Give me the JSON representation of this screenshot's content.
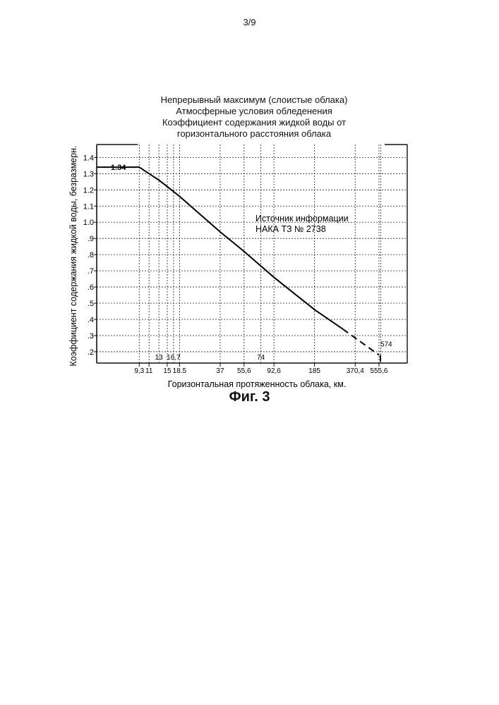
{
  "page_number": "3/9",
  "figure_label": "Фиг. 3",
  "chart_data": {
    "type": "line",
    "title_lines": [
      "Непрерывный максимум (слоистые облака)",
      "Атмосферные условия обледенения",
      "Коэффициент содержания жидкой воды от",
      "горизонтального расстояния облака"
    ],
    "xlabel": "Горизонтальная протяженность облака, км.",
    "ylabel": "Коэффициент содержания жидкой воды, безразмерн.",
    "x_scale": "log",
    "xlim": [
      4.5,
      900
    ],
    "ylim": [
      0.13,
      1.48
    ],
    "grid": true,
    "y_ticks": [
      {
        "value": 1.4,
        "label": "1.4"
      },
      {
        "value": 1.3,
        "label": "1.3"
      },
      {
        "value": 1.2,
        "label": "1.2"
      },
      {
        "value": 1.1,
        "label": "1.1"
      },
      {
        "value": 1.0,
        "label": "1.0"
      },
      {
        "value": 0.9,
        "label": ".9"
      },
      {
        "value": 0.8,
        "label": ".8"
      },
      {
        "value": 0.7,
        "label": ".7"
      },
      {
        "value": 0.6,
        "label": ".6"
      },
      {
        "value": 0.5,
        "label": ".5"
      },
      {
        "value": 0.4,
        "label": ".4"
      },
      {
        "value": 0.3,
        "label": ".3"
      },
      {
        "value": 0.2,
        "label": ".2"
      }
    ],
    "x_ticks_bottom": [
      {
        "value": 9.3,
        "label": "9,3"
      },
      {
        "value": 11,
        "label": "11"
      },
      {
        "value": 15,
        "label": "15"
      },
      {
        "value": 18.5,
        "label": "18.5"
      },
      {
        "value": 37,
        "label": "37"
      },
      {
        "value": 55.6,
        "label": "55,6"
      },
      {
        "value": 92.6,
        "label": "92,6"
      },
      {
        "value": 185,
        "label": "185"
      },
      {
        "value": 370.4,
        "label": "370,4"
      },
      {
        "value": 555.6,
        "label": "555,6"
      }
    ],
    "x_ticks_inner": [
      {
        "value": 13,
        "label": "13"
      },
      {
        "value": 16.7,
        "label": "16,7"
      },
      {
        "value": 74,
        "label": "74"
      }
    ],
    "series": [
      {
        "style": "solid",
        "x": [
          4.5,
          9.3,
          11,
          13,
          15,
          18.5,
          37,
          55.6,
          74,
          92.6,
          185,
          300
        ],
        "y": [
          1.34,
          1.34,
          1.3,
          1.26,
          1.22,
          1.16,
          0.94,
          0.82,
          0.73,
          0.66,
          0.46,
          0.34
        ]
      },
      {
        "style": "dashed",
        "x": [
          300,
          555.6
        ],
        "y": [
          0.34,
          0.18
        ]
      }
    ],
    "annotations": [
      {
        "label": "1.34",
        "x": 4.5,
        "y": 1.34
      },
      {
        "label": "574",
        "x": 574,
        "y": 0.2
      }
    ],
    "source_lines": [
      "Источник информации",
      "НАКА ТЗ № 2738"
    ]
  }
}
